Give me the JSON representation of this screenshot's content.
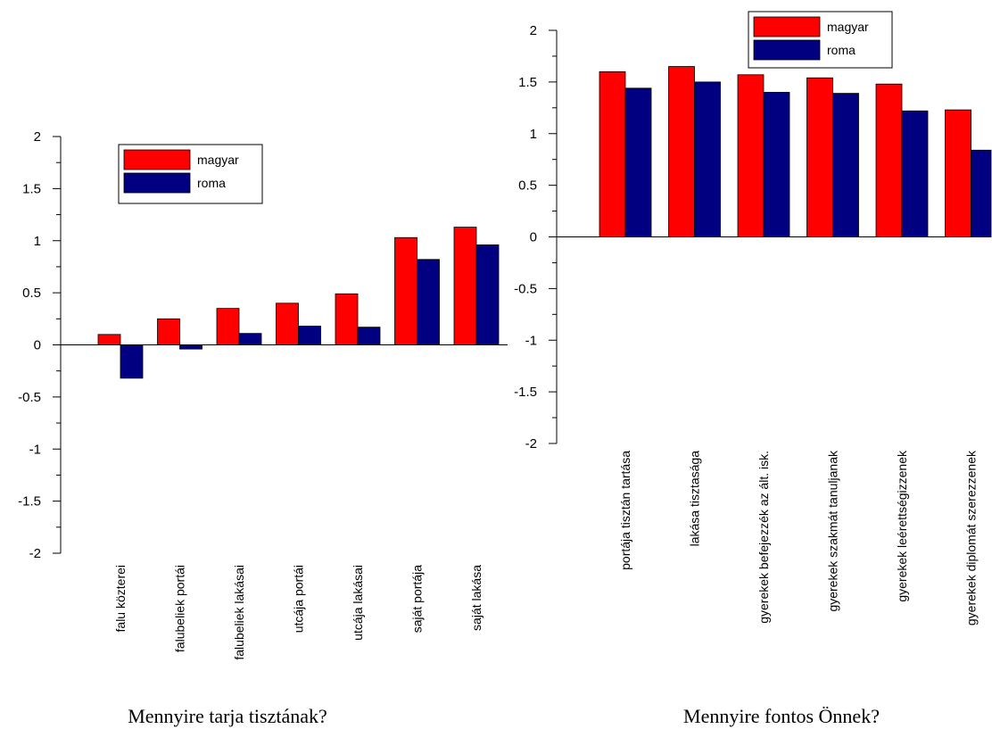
{
  "chart_data": [
    {
      "type": "bar",
      "caption": "Mennyire tarja tisztának?",
      "categories": [
        "falu közterei",
        "falubeliek portái",
        "falubeliek lakásai",
        "utcája portái",
        "utcája lakásai",
        "saját portája",
        "saját lakása"
      ],
      "series": [
        {
          "name": "magyar",
          "color": "#ff0000",
          "values": [
            0.1,
            0.25,
            0.35,
            0.4,
            0.49,
            1.03,
            1.13
          ]
        },
        {
          "name": "roma",
          "color": "#000080",
          "values": [
            -0.32,
            -0.04,
            0.11,
            0.18,
            0.17,
            0.82,
            0.96
          ]
        }
      ],
      "ylim": [
        -2,
        2
      ],
      "yticks": [
        "2",
        "1.5",
        "1",
        "0.5",
        "0",
        "-0.5",
        "-1",
        "-1.5",
        "-2"
      ],
      "legend": "top-center",
      "grid": false
    },
    {
      "type": "bar",
      "caption": "Mennyire fontos Önnek?",
      "categories": [
        "portája tisztán tartása",
        "lakása tisztasága",
        "gyerekek befejezzék az ált. isk.",
        "gyerekek szakmát tanuljanak",
        "gyerekek leérettségizzenek",
        "gyerekek diplomát szerezzenek"
      ],
      "series": [
        {
          "name": "magyar",
          "color": "#ff0000",
          "values": [
            1.6,
            1.65,
            1.57,
            1.54,
            1.48,
            1.23
          ]
        },
        {
          "name": "roma",
          "color": "#000080",
          "values": [
            1.44,
            1.5,
            1.4,
            1.39,
            1.22,
            0.84
          ]
        }
      ],
      "ylim": [
        -2,
        2
      ],
      "yticks": [
        "2",
        "1.5",
        "1",
        "0.5",
        "0",
        "-0.5",
        "-1",
        "-1.5",
        "-2"
      ],
      "legend": "top-center",
      "grid": false
    }
  ]
}
